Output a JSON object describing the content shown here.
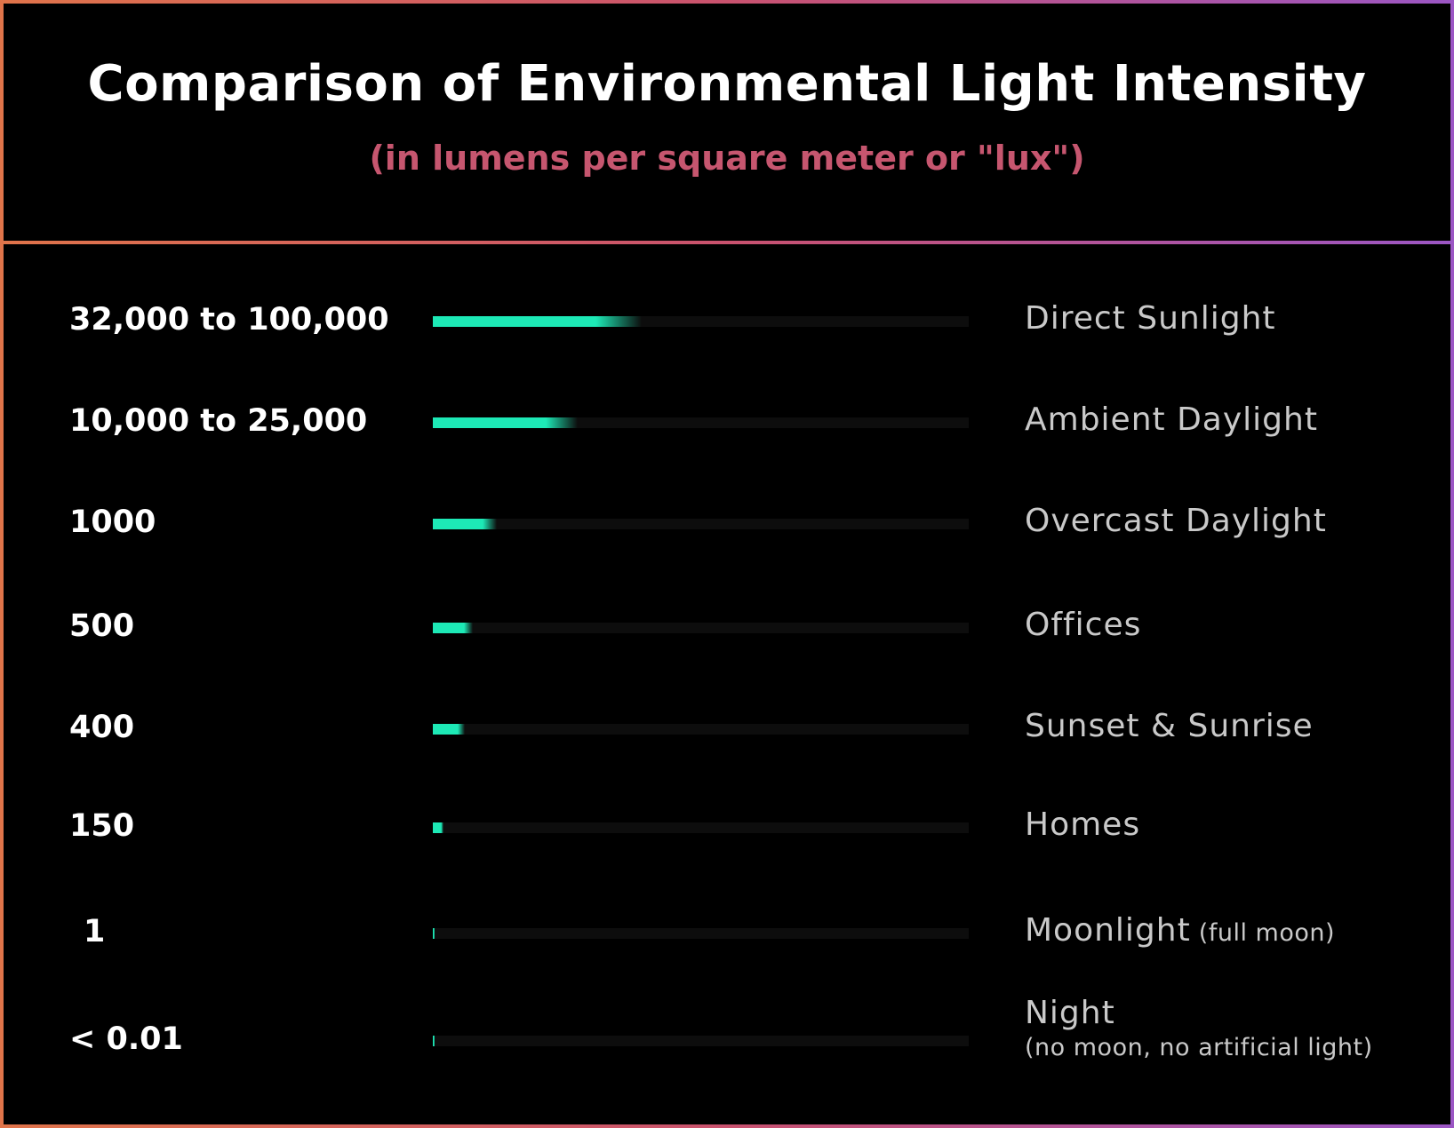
{
  "colors": {
    "accent": "#1de9b6",
    "track": "#0d0d0d",
    "subtitle": "#c6566f",
    "border_start": "#e0744a",
    "border_end": "#9b56c4"
  },
  "chart_data": {
    "type": "bar",
    "orientation": "horizontal",
    "title": "Comparison of Environmental Light Intensity",
    "subtitle": "(in lumens per square meter or \"lux\")",
    "items": [
      {
        "value_label": "32,000 to 100,000",
        "category": "Direct Sunlight",
        "note": "",
        "fill": 0.39
      },
      {
        "value_label": "10,000 to 25,000",
        "category": "Ambient Daylight",
        "note": "",
        "fill": 0.27
      },
      {
        "value_label": "1000",
        "category": "Overcast Daylight",
        "note": "",
        "fill": 0.12
      },
      {
        "value_label": "500",
        "category": "Offices",
        "note": "",
        "fill": 0.075
      },
      {
        "value_label": "400",
        "category": "Sunset & Sunrise",
        "note": "",
        "fill": 0.06
      },
      {
        "value_label": "150",
        "category": "Homes",
        "note": "",
        "fill": 0.02
      },
      {
        "value_label": "1",
        "category": "Moonlight",
        "note": "(full moon)",
        "fill": 0.004
      },
      {
        "value_label": "< 0.01",
        "category": "Night",
        "note": "(no moon, no artificial light)",
        "fill": 0.002
      }
    ]
  }
}
